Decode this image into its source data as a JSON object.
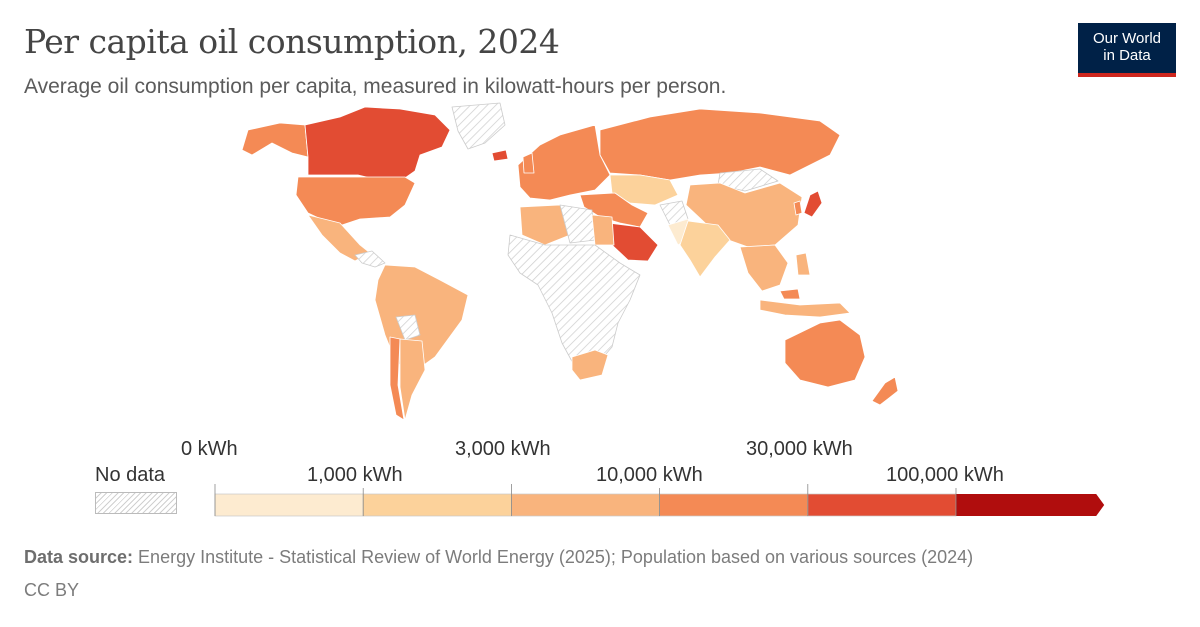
{
  "header": {
    "title": "Per capita oil consumption, 2024",
    "subtitle": "Average oil consumption per capita, measured in kilowatt-hours per person."
  },
  "logo": {
    "line1": "Our World",
    "line2": "in Data"
  },
  "legend": {
    "no_data_label": "No data",
    "ticks_upper": [
      "0 kWh",
      "3,000 kWh",
      "30,000 kWh"
    ],
    "ticks_lower": [
      "1,000 kWh",
      "10,000 kWh",
      "100,000 kWh"
    ],
    "colors": [
      "#fdebd0",
      "#fcd29b",
      "#f9b47d",
      "#f48a55",
      "#e24c33",
      "#b00d0d"
    ],
    "nodata_color": "#e6e6e6"
  },
  "map_data": {
    "bins": [
      "0–1,000 kWh",
      "1,000–3,000 kWh",
      "3,000–10,000 kWh",
      "10,000–30,000 kWh",
      "30,000–100,000 kWh",
      ">100,000 kWh"
    ],
    "regions": [
      {
        "name": "Canada",
        "bin": 4
      },
      {
        "name": "United States",
        "bin": 3
      },
      {
        "name": "Mexico",
        "bin": 2
      },
      {
        "name": "Greenland",
        "bin": -1
      },
      {
        "name": "South America",
        "bin": 2
      },
      {
        "name": "Argentina",
        "bin": 2
      },
      {
        "name": "Chile",
        "bin": 3
      },
      {
        "name": "Europe",
        "bin": 3
      },
      {
        "name": "Russia",
        "bin": 3
      },
      {
        "name": "Central Asia",
        "bin": 2
      },
      {
        "name": "Saudi Arabia",
        "bin": 4
      },
      {
        "name": "Iran",
        "bin": 3
      },
      {
        "name": "China",
        "bin": 2
      },
      {
        "name": "Mongolia",
        "bin": -1
      },
      {
        "name": "India",
        "bin": 1
      },
      {
        "name": "Japan",
        "bin": 3
      },
      {
        "name": "Southeast Asia",
        "bin": 2
      },
      {
        "name": "Indonesia",
        "bin": 2
      },
      {
        "name": "Australia",
        "bin": 3
      },
      {
        "name": "New Zealand",
        "bin": 3
      },
      {
        "name": "Egypt",
        "bin": 2
      },
      {
        "name": "Algeria",
        "bin": 2
      },
      {
        "name": "Africa",
        "bin": -1
      },
      {
        "name": "South Africa",
        "bin": 2
      }
    ]
  },
  "footer": {
    "source_label": "Data source:",
    "source_text": " Energy Institute - Statistical Review of World Energy (2025); Population based on various sources (2024)",
    "license": "CC BY"
  }
}
